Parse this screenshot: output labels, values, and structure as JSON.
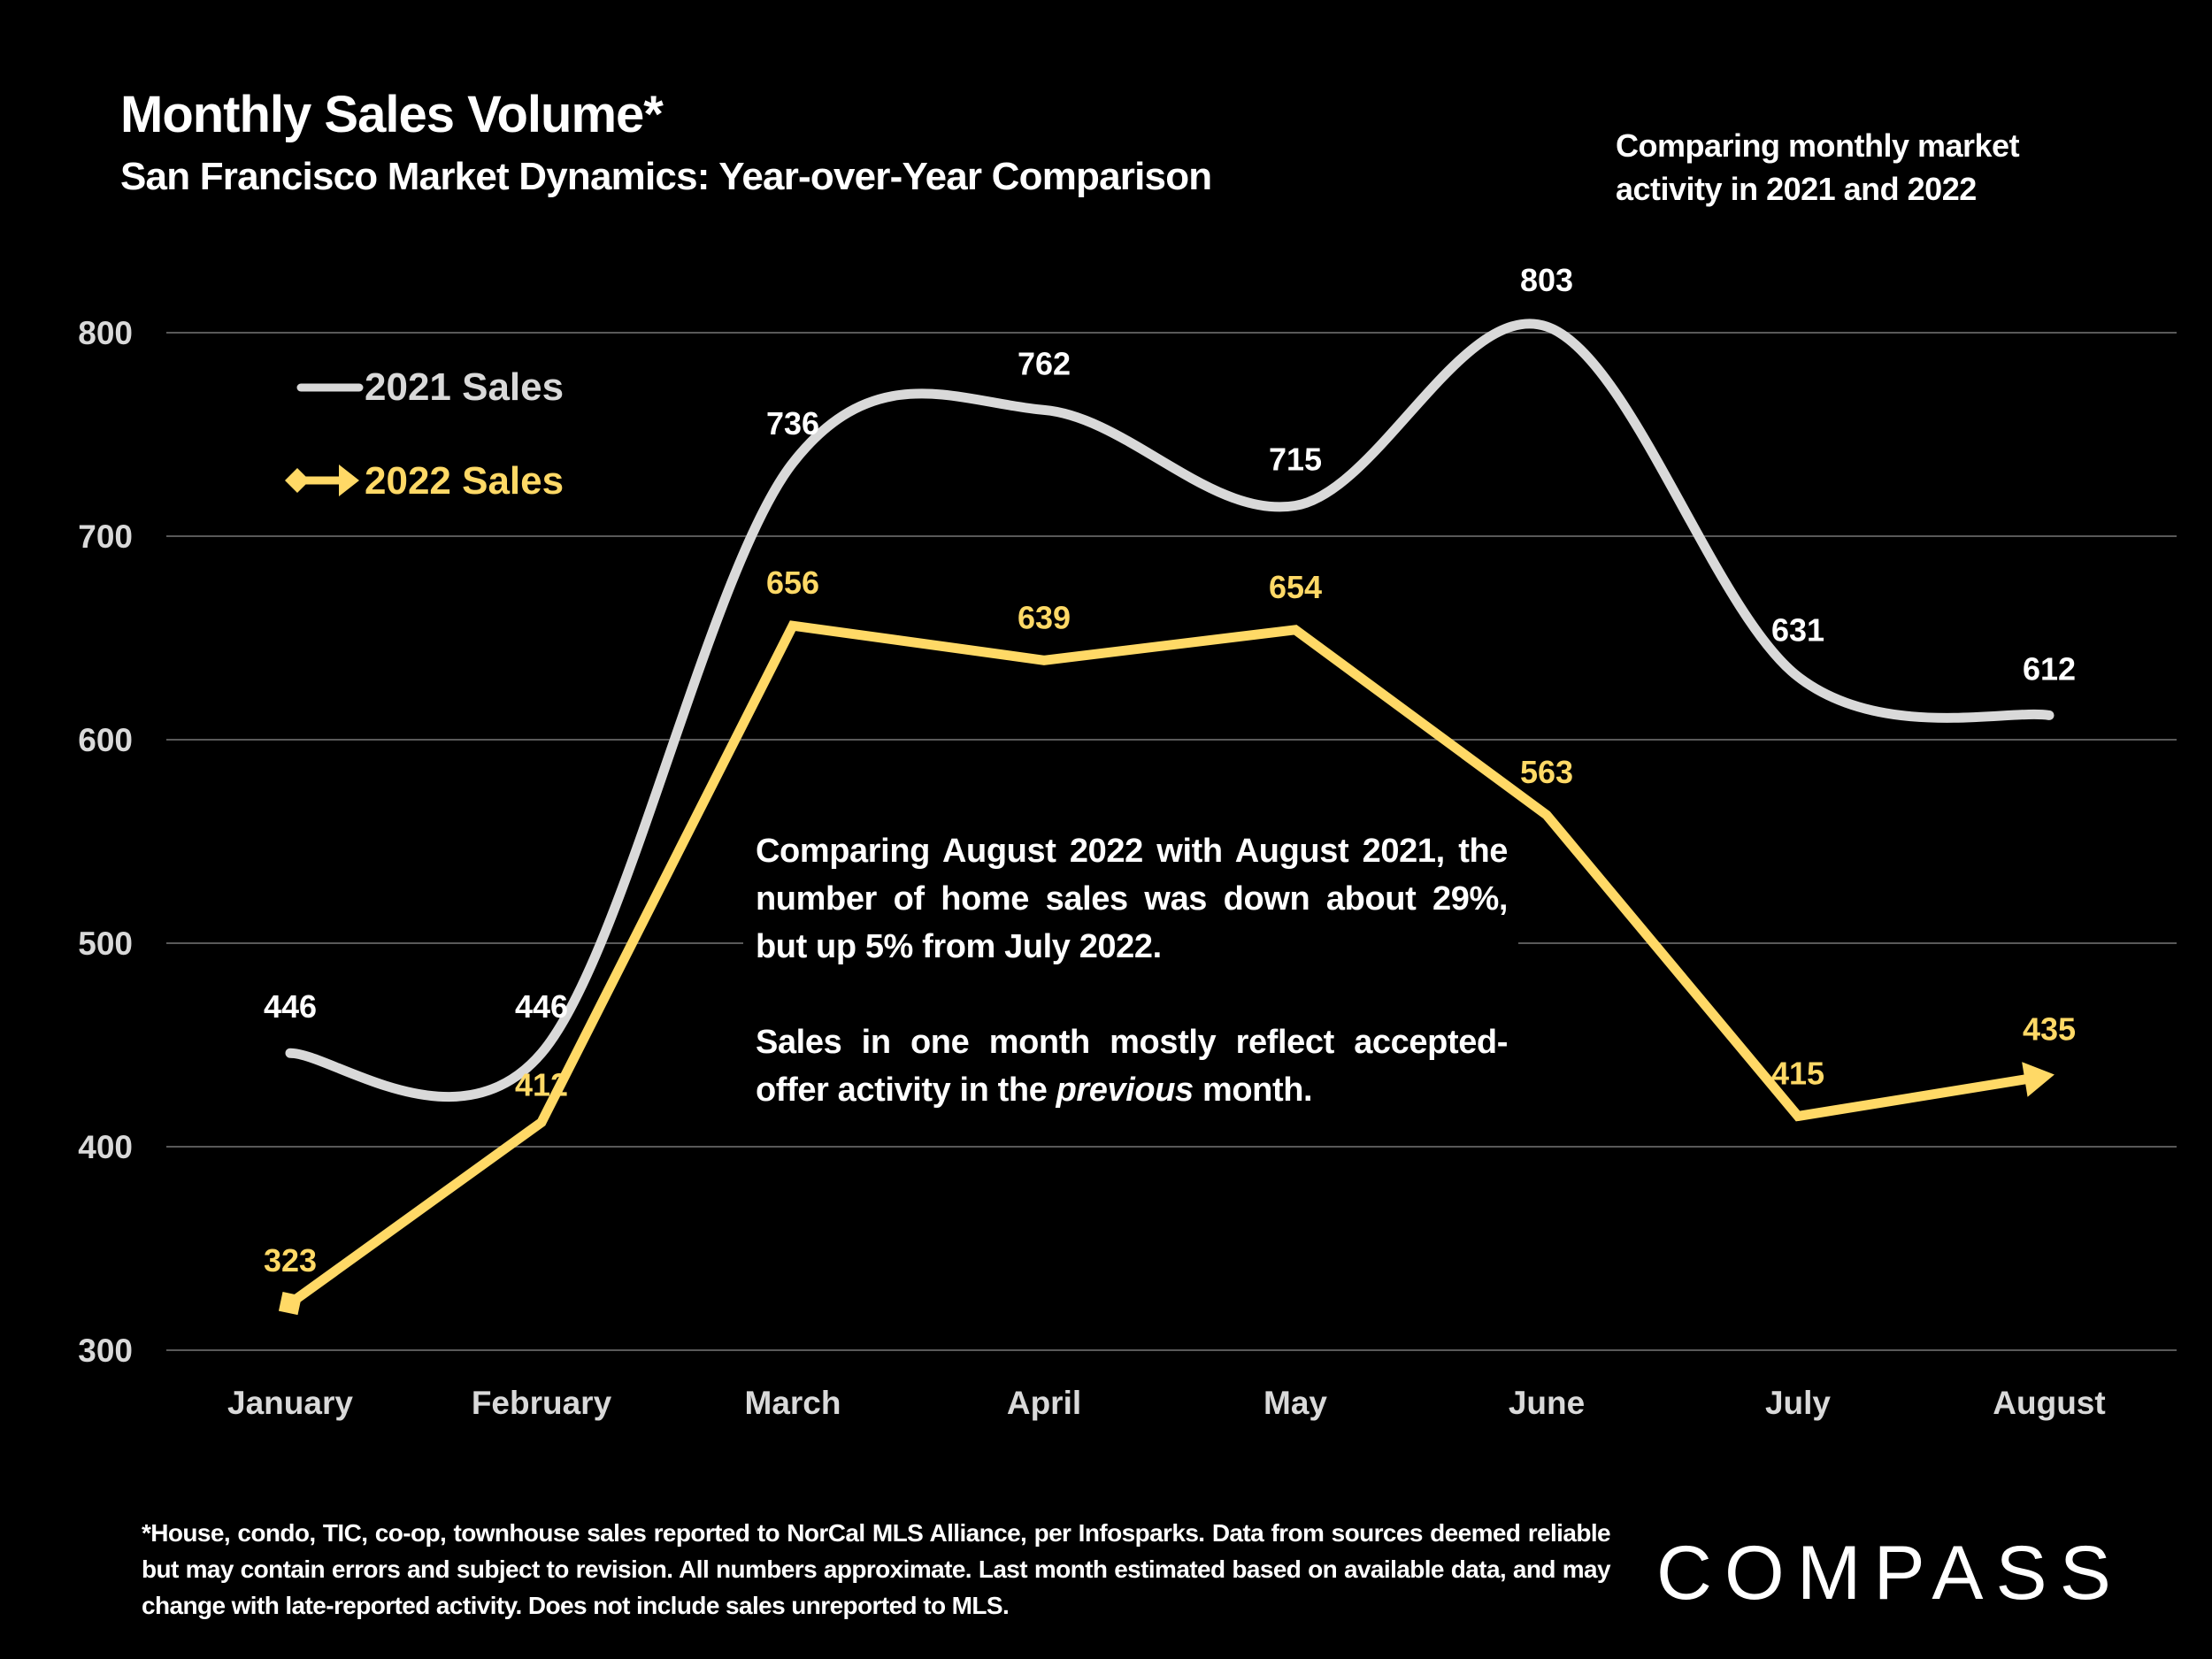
{
  "header": {
    "title": "Monthly Sales Volume*",
    "subtitle": "San Francisco Market Dynamics: Year-over-Year Comparison",
    "note": "Comparing monthly market activity in 2021 and 2022"
  },
  "callout": {
    "paragraph1": "Comparing August 2022 with August 2021, the number of home sales was down about 29%, but up 5% from July 2022.",
    "paragraph2_before": "Sales in one month mostly reflect accepted-offer activity in the ",
    "paragraph2_italic": "previous",
    "paragraph2_after": " month."
  },
  "footnote": "*House, condo, TIC, co-op, townhouse sales reported to NorCal MLS Alliance, per Infosparks. Data from sources deemed reliable but may contain errors and subject to revision. All numbers approximate. Last month estimated based on available data, and may change with late-reported activity. Does not include sales unreported to MLS.",
  "brand": {
    "logo_text": "COMPASS",
    "logo_icon": "compass-o-slash-icon"
  },
  "colors": {
    "background": "#000000",
    "series_2021": "#d9d9d9",
    "series_2022": "#ffd966",
    "gridline": "#595959",
    "text": "#ffffff"
  },
  "chart_data": {
    "type": "line",
    "title": "Monthly Sales Volume*",
    "subtitle": "San Francisco Market Dynamics: Year-over-Year Comparison",
    "xlabel": "",
    "ylabel": "",
    "categories": [
      "January",
      "February",
      "March",
      "April",
      "May",
      "June",
      "July",
      "August"
    ],
    "ylim": [
      300,
      800
    ],
    "yticks": [
      300,
      400,
      500,
      600,
      700,
      800
    ],
    "grid": true,
    "legend_position": "top-left",
    "series": [
      {
        "name": "2021 Sales",
        "values": [
          446,
          446,
          736,
          762,
          715,
          803,
          631,
          612
        ],
        "style": "smooth",
        "marker": "none"
      },
      {
        "name": "2022 Sales",
        "values": [
          323,
          412,
          656,
          639,
          654,
          563,
          415,
          435
        ],
        "style": "straight",
        "marker": "square-start-arrow-end"
      }
    ]
  }
}
